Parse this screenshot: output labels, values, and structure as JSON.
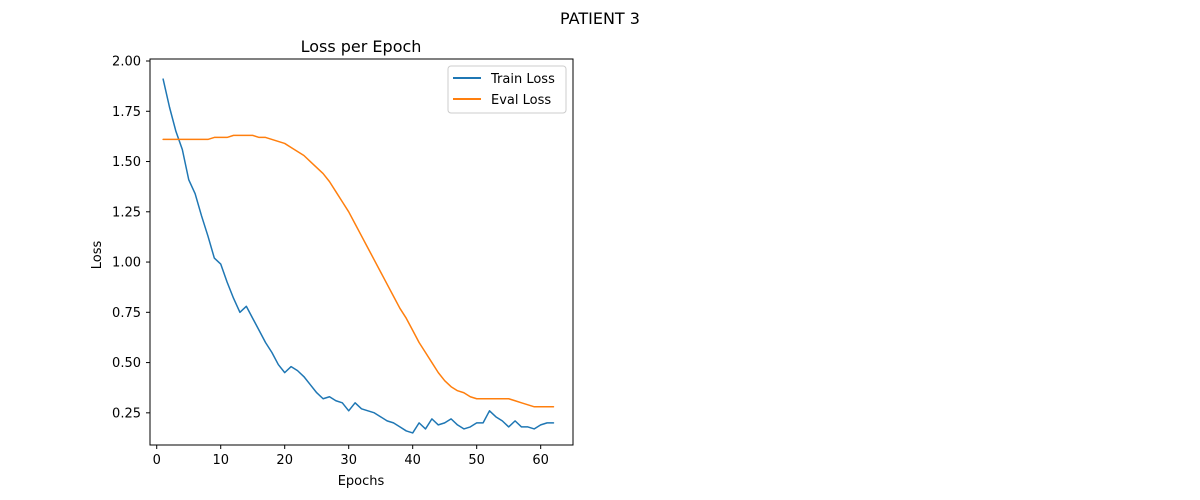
{
  "figure": {
    "suptitle": "PATIENT 3"
  },
  "chart_data": {
    "type": "line",
    "title": "Loss per Epoch",
    "xlabel": "Epochs",
    "ylabel": "Loss",
    "xlim": [
      -1.05,
      65.05
    ],
    "ylim": [
      0.09,
      2.01
    ],
    "xticks": [
      0,
      10,
      20,
      30,
      40,
      50,
      60
    ],
    "yticks": [
      0.25,
      0.5,
      0.75,
      1.0,
      1.25,
      1.5,
      1.75,
      2.0
    ],
    "ytick_labels": [
      "0.25",
      "0.50",
      "0.75",
      "1.00",
      "1.25",
      "1.50",
      "1.75",
      "2.00"
    ],
    "grid": false,
    "legend_position": "top-right",
    "x": [
      1,
      2,
      3,
      4,
      5,
      6,
      7,
      8,
      9,
      10,
      11,
      12,
      13,
      14,
      15,
      16,
      17,
      18,
      19,
      20,
      21,
      22,
      23,
      24,
      25,
      26,
      27,
      28,
      29,
      30,
      31,
      32,
      33,
      34,
      35,
      36,
      37,
      38,
      39,
      40,
      41,
      42,
      43,
      44,
      45,
      46,
      47,
      48,
      49,
      50,
      51,
      52,
      53,
      54,
      55,
      56,
      57,
      58,
      59,
      60,
      61,
      62
    ],
    "series": [
      {
        "name": "Train Loss",
        "color": "#1f77b4",
        "values": [
          1.91,
          1.77,
          1.65,
          1.56,
          1.41,
          1.34,
          1.23,
          1.13,
          1.02,
          0.99,
          0.9,
          0.82,
          0.75,
          0.78,
          0.72,
          0.66,
          0.6,
          0.55,
          0.49,
          0.45,
          0.48,
          0.46,
          0.43,
          0.39,
          0.35,
          0.32,
          0.33,
          0.31,
          0.3,
          0.26,
          0.3,
          0.27,
          0.26,
          0.25,
          0.23,
          0.21,
          0.2,
          0.18,
          0.16,
          0.15,
          0.2,
          0.17,
          0.22,
          0.19,
          0.2,
          0.22,
          0.19,
          0.17,
          0.18,
          0.2,
          0.2,
          0.26,
          0.23,
          0.21,
          0.18,
          0.21,
          0.18,
          0.18,
          0.17,
          0.19,
          0.2,
          0.2
        ]
      },
      {
        "name": "Eval Loss",
        "color": "#ff7f0e",
        "values": [
          1.61,
          1.61,
          1.61,
          1.61,
          1.61,
          1.61,
          1.61,
          1.61,
          1.62,
          1.62,
          1.62,
          1.63,
          1.63,
          1.63,
          1.63,
          1.62,
          1.62,
          1.61,
          1.6,
          1.59,
          1.57,
          1.55,
          1.53,
          1.5,
          1.47,
          1.44,
          1.4,
          1.35,
          1.3,
          1.25,
          1.19,
          1.13,
          1.07,
          1.01,
          0.95,
          0.89,
          0.83,
          0.77,
          0.72,
          0.66,
          0.6,
          0.55,
          0.5,
          0.45,
          0.41,
          0.38,
          0.36,
          0.35,
          0.33,
          0.32,
          0.32,
          0.32,
          0.32,
          0.32,
          0.32,
          0.31,
          0.3,
          0.29,
          0.28,
          0.28,
          0.28,
          0.28
        ]
      }
    ]
  }
}
